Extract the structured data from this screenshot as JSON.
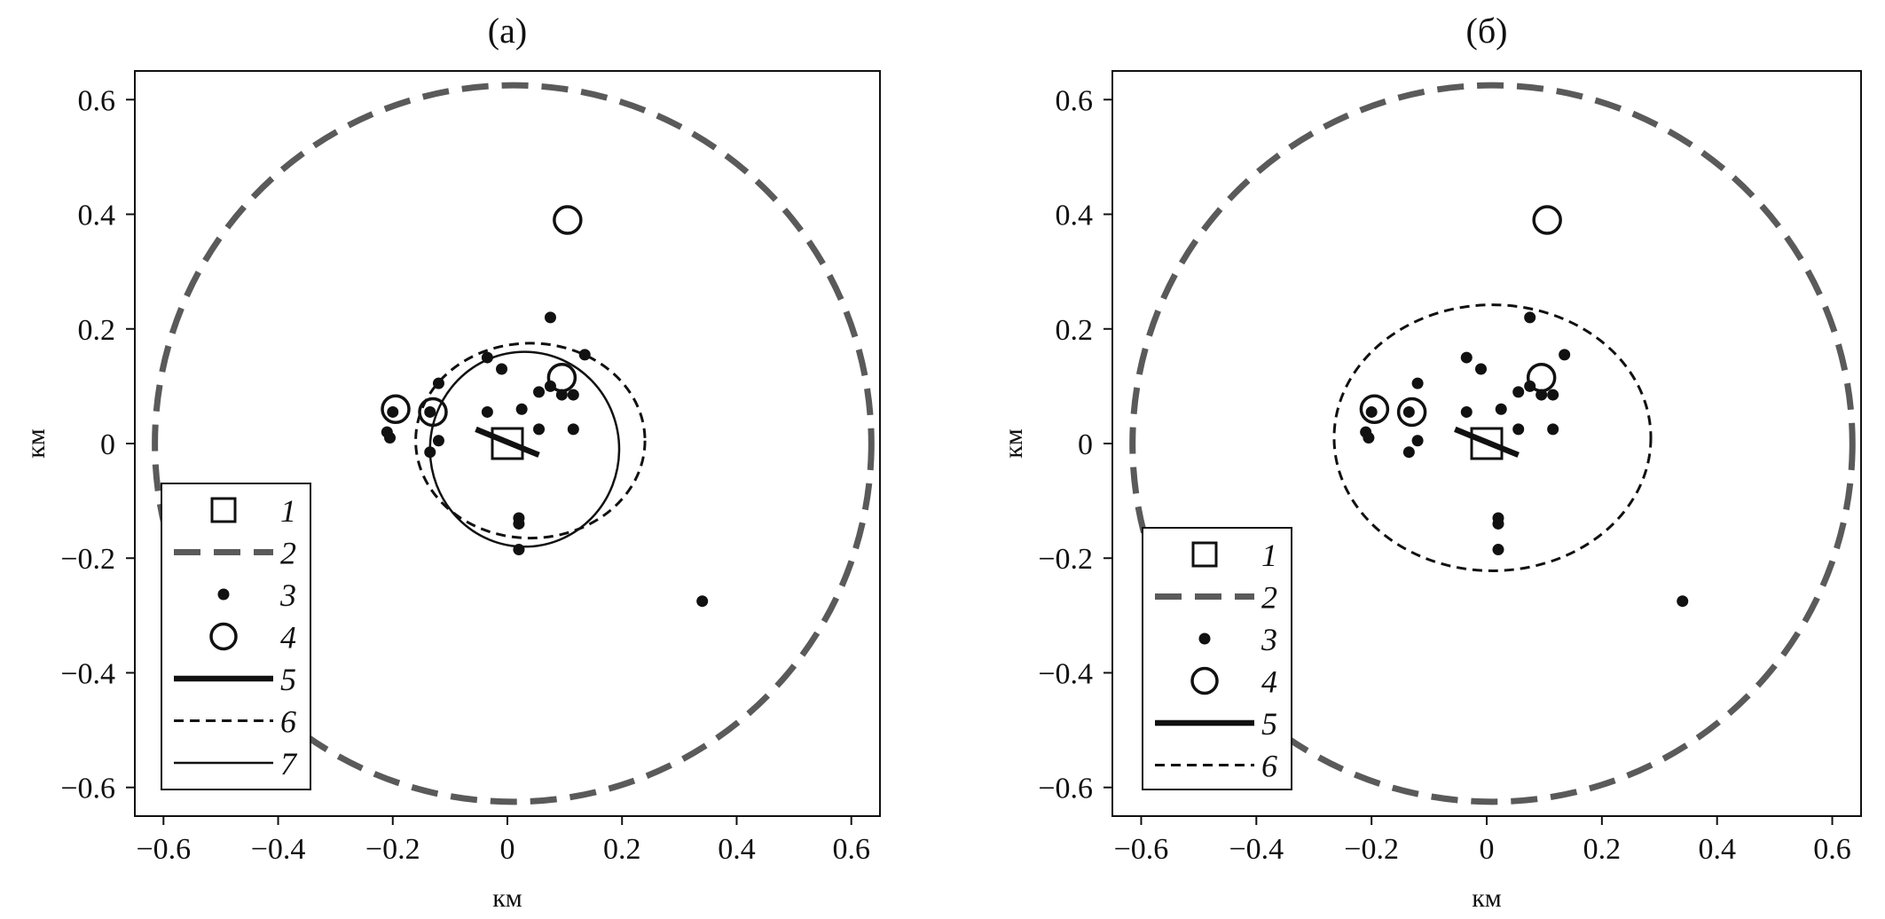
{
  "colors": {
    "ellipse_2": "#5a5a5a",
    "ink": "#111111",
    "background": "#ffffff"
  },
  "chart_data": [
    {
      "type": "scatter",
      "title": "(а)",
      "xlabel": "км",
      "ylabel": "км",
      "xlim": [
        -0.65,
        0.65
      ],
      "ylim": [
        -0.65,
        0.65
      ],
      "xticks": [
        -0.6,
        -0.4,
        -0.2,
        0,
        0.2,
        0.4,
        0.6
      ],
      "yticks": [
        -0.6,
        -0.4,
        -0.2,
        0,
        0.2,
        0.4,
        0.6
      ],
      "xtick_labels": [
        "−0.6",
        "−0.4",
        "−0.2",
        "0",
        "0.2",
        "0.4",
        "0.6"
      ],
      "ytick_labels": [
        "−0.6",
        "−0.4",
        "−0.2",
        "0",
        "0.2",
        "0.4",
        "0.6"
      ],
      "grid": false,
      "legend_position": "bottom-left",
      "legend": [
        {
          "key": "1",
          "symbol": "square"
        },
        {
          "key": "2",
          "symbol": "dash-long"
        },
        {
          "key": "3",
          "symbol": "dot"
        },
        {
          "key": "4",
          "symbol": "circle"
        },
        {
          "key": "5",
          "symbol": "thick-line"
        },
        {
          "key": "6",
          "symbol": "dash-short"
        },
        {
          "key": "7",
          "symbol": "thin-line"
        }
      ],
      "series": [
        {
          "key": "1",
          "kind": "square",
          "points": [
            [
              0,
              0
            ]
          ]
        },
        {
          "key": "2",
          "kind": "ellipse",
          "style": "dash-long",
          "center": [
            0.01,
            0
          ],
          "radii": [
            0.625,
            0.625
          ]
        },
        {
          "key": "3",
          "kind": "dots",
          "points": [
            [
              0.075,
              0.22
            ],
            [
              0.135,
              0.155
            ],
            [
              -0.035,
              0.15
            ],
            [
              -0.01,
              0.13
            ],
            [
              0.115,
              0.085
            ],
            [
              -0.12,
              0.105
            ],
            [
              0.055,
              0.09
            ],
            [
              0.075,
              0.1
            ],
            [
              0.095,
              0.085
            ],
            [
              -0.035,
              0.055
            ],
            [
              0.025,
              0.06
            ],
            [
              -0.2,
              0.055
            ],
            [
              -0.135,
              0.055
            ],
            [
              0.055,
              0.025
            ],
            [
              0.115,
              0.025
            ],
            [
              -0.12,
              0.005
            ],
            [
              -0.21,
              0.02
            ],
            [
              -0.205,
              0.01
            ],
            [
              -0.135,
              -0.015
            ],
            [
              0.02,
              -0.13
            ],
            [
              0.02,
              -0.14
            ],
            [
              0.02,
              -0.185
            ],
            [
              0.34,
              -0.275
            ]
          ]
        },
        {
          "key": "4",
          "kind": "circles",
          "points": [
            [
              0.105,
              0.39
            ],
            [
              0.095,
              0.115
            ],
            [
              -0.195,
              0.06
            ],
            [
              -0.13,
              0.055
            ]
          ]
        },
        {
          "key": "5",
          "kind": "segment",
          "from": [
            -0.055,
            0.025
          ],
          "to": [
            0.055,
            -0.02
          ]
        },
        {
          "key": "6",
          "kind": "ellipse",
          "style": "dash-short",
          "center": [
            0.04,
            0.005
          ],
          "radii": [
            0.2,
            0.17
          ],
          "rotation": 0
        },
        {
          "key": "7",
          "kind": "ellipse",
          "style": "thin-line",
          "center": [
            0.03,
            -0.01
          ],
          "radii": [
            0.165,
            0.17
          ],
          "rotation": 0
        }
      ]
    },
    {
      "type": "scatter",
      "title": "(б)",
      "xlabel": "км",
      "ylabel": "км",
      "xlim": [
        -0.65,
        0.65
      ],
      "ylim": [
        -0.65,
        0.65
      ],
      "xticks": [
        -0.6,
        -0.4,
        -0.2,
        0,
        0.2,
        0.4,
        0.6
      ],
      "yticks": [
        -0.6,
        -0.4,
        -0.2,
        0,
        0.2,
        0.4,
        0.6
      ],
      "xtick_labels": [
        "−0.6",
        "−0.4",
        "−0.2",
        "0",
        "0.2",
        "0.4",
        "0.6"
      ],
      "ytick_labels": [
        "−0.6",
        "−0.4",
        "−0.2",
        "0",
        "0.2",
        "0.4",
        "0.6"
      ],
      "grid": false,
      "legend_position": "bottom-left",
      "legend": [
        {
          "key": "1",
          "symbol": "square"
        },
        {
          "key": "2",
          "symbol": "dash-long"
        },
        {
          "key": "3",
          "symbol": "dot"
        },
        {
          "key": "4",
          "symbol": "circle"
        },
        {
          "key": "5",
          "symbol": "thick-line"
        },
        {
          "key": "6",
          "symbol": "dash-short"
        }
      ],
      "series": [
        {
          "key": "1",
          "kind": "square",
          "points": [
            [
              0,
              0
            ]
          ]
        },
        {
          "key": "2",
          "kind": "ellipse",
          "style": "dash-long",
          "center": [
            0.01,
            0
          ],
          "radii": [
            0.625,
            0.625
          ]
        },
        {
          "key": "3",
          "kind": "dots",
          "points": [
            [
              0.075,
              0.22
            ],
            [
              0.135,
              0.155
            ],
            [
              -0.035,
              0.15
            ],
            [
              -0.01,
              0.13
            ],
            [
              0.115,
              0.085
            ],
            [
              -0.12,
              0.105
            ],
            [
              0.055,
              0.09
            ],
            [
              0.075,
              0.1
            ],
            [
              0.095,
              0.085
            ],
            [
              -0.035,
              0.055
            ],
            [
              0.025,
              0.06
            ],
            [
              -0.2,
              0.055
            ],
            [
              -0.135,
              0.055
            ],
            [
              0.055,
              0.025
            ],
            [
              0.115,
              0.025
            ],
            [
              -0.12,
              0.005
            ],
            [
              -0.21,
              0.02
            ],
            [
              -0.205,
              0.01
            ],
            [
              -0.135,
              -0.015
            ],
            [
              0.02,
              -0.13
            ],
            [
              0.02,
              -0.14
            ],
            [
              0.02,
              -0.185
            ],
            [
              0.34,
              -0.275
            ]
          ]
        },
        {
          "key": "4",
          "kind": "circles",
          "points": [
            [
              0.105,
              0.39
            ],
            [
              0.095,
              0.115
            ],
            [
              -0.195,
              0.06
            ],
            [
              -0.13,
              0.055
            ]
          ]
        },
        {
          "key": "5",
          "kind": "segment",
          "from": [
            -0.055,
            0.025
          ],
          "to": [
            0.055,
            -0.02
          ]
        },
        {
          "key": "6",
          "kind": "ellipse",
          "style": "dash-short",
          "center": [
            0.01,
            0.01
          ],
          "radii": [
            0.275,
            0.232
          ],
          "rotation": 0
        }
      ]
    }
  ]
}
